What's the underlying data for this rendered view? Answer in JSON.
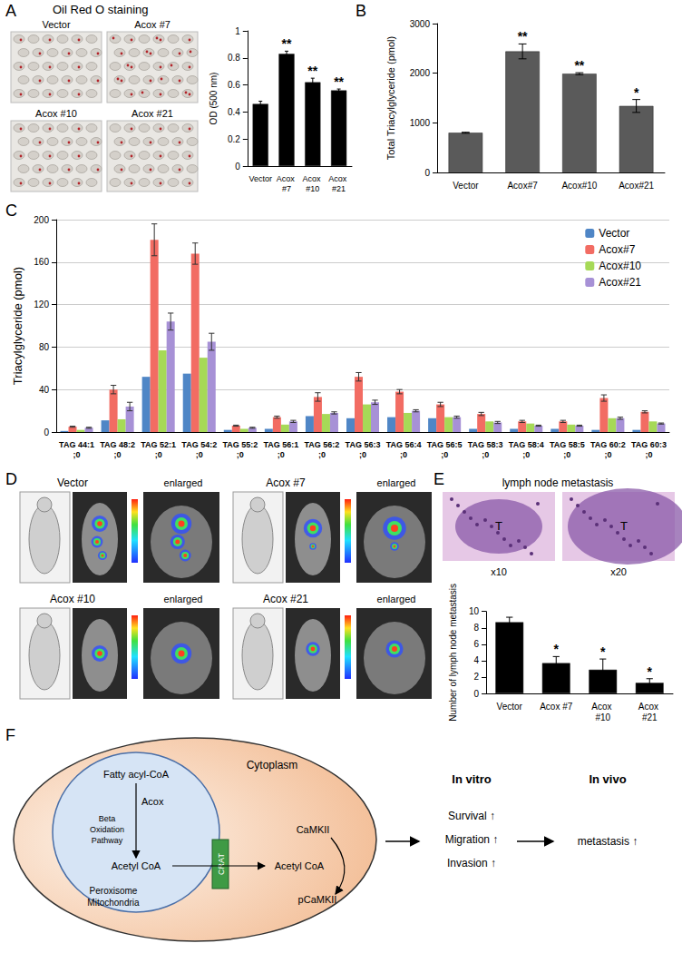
{
  "panel_labels": [
    "A",
    "B",
    "C",
    "D",
    "E",
    "F"
  ],
  "images": {
    "A": {
      "title": "Oil Red O staining",
      "labels": [
        "Vector",
        "Acox #7",
        "Acox #10",
        "Acox #21"
      ]
    },
    "D": {
      "labels": [
        "Vector",
        "Acox #7",
        "Acox #10",
        "Acox #21"
      ],
      "enlarged": "enlarged"
    },
    "E": {
      "title": "lymph node metastasis",
      "tumor_label": "T",
      "captions": [
        "x10",
        "x20"
      ]
    }
  },
  "chart_data": [
    {
      "type": "bar",
      "categories": [
        "Vector",
        "Acox #7",
        "Acox #10",
        "Acox #21"
      ],
      "values": [
        0.46,
        0.83,
        0.62,
        0.56
      ],
      "errors": [
        0.02,
        0.02,
        0.03,
        0.01
      ],
      "color": "#000000",
      "ylabel": "OD (500 nm)",
      "ylim": [
        0,
        1
      ],
      "yticks": [
        0,
        0.2,
        0.4,
        0.6,
        0.8,
        1
      ],
      "grid": false,
      "annotations": [
        {
          "category": "Acox #7",
          "text": "**"
        },
        {
          "category": "Acox #10",
          "text": "**"
        },
        {
          "category": "Acox #21",
          "text": "**"
        }
      ]
    },
    {
      "type": "bar",
      "categories": [
        "Vector",
        "Acox#7",
        "Acox#10",
        "Acox#21"
      ],
      "values": [
        800,
        2440,
        1990,
        1340
      ],
      "errors": [
        10,
        150,
        20,
        130
      ],
      "color": "#5a5a5a",
      "ylabel": "Total Triacylglyceride (pmol)",
      "ylim": [
        0,
        3000
      ],
      "yticks": [
        0,
        1000,
        2000,
        3000
      ],
      "grid": false,
      "annotations": [
        {
          "category": "Acox#7",
          "text": "**"
        },
        {
          "category": "Acox#10",
          "text": "**"
        },
        {
          "category": "Acox#21",
          "text": "*"
        }
      ]
    },
    {
      "type": "bar",
      "categories": [
        "TAG 44:1;0",
        "TAG 48:2;0",
        "TAG 52:1;0",
        "TAG 54:2;0",
        "TAG 55:2;0",
        "TAG 56:1;0",
        "TAG 56:2;0",
        "TAG 56:3;0",
        "TAG 56:4;0",
        "TAG 56:5;0",
        "TAG 58:3;0",
        "TAG 58:4;0",
        "TAG 58:5;0",
        "TAG 60:2;0",
        "TAG 60:3;0"
      ],
      "ylabel": "Triacylglyceride (pmol)",
      "ylim": [
        0,
        200
      ],
      "yticks": [
        0,
        40,
        80,
        120,
        160,
        200
      ],
      "grid": true,
      "legend": "upper right",
      "series": [
        {
          "name": "Vector",
          "color": "#4f86c6",
          "values": [
            1,
            11,
            52,
            55,
            2,
            3,
            15,
            13,
            14,
            13,
            3,
            3,
            3,
            2,
            2
          ]
        },
        {
          "name": "Acox#7",
          "color": "#f26c63",
          "values": [
            5,
            40,
            181,
            168,
            6,
            14,
            33,
            52,
            38,
            26,
            17,
            10,
            10,
            32,
            19
          ],
          "errors": [
            0.5,
            4,
            15,
            10,
            0.5,
            1,
            4,
            4,
            2,
            2,
            1.5,
            1,
            1,
            3,
            1
          ]
        },
        {
          "name": "Acox#10",
          "color": "#a6d957",
          "values": [
            2,
            12,
            77,
            70,
            3,
            7,
            17,
            26,
            18,
            14,
            10,
            8,
            7,
            13,
            10
          ]
        },
        {
          "name": "Acox#21",
          "color": "#a791d6",
          "values": [
            4,
            24,
            104,
            85,
            4,
            10,
            18,
            28,
            20,
            14,
            9,
            6,
            6,
            13,
            8
          ],
          "errors": [
            0.5,
            4,
            8,
            8,
            0.5,
            1,
            1,
            2,
            1,
            1,
            1,
            0.5,
            0.5,
            1,
            0.5
          ]
        }
      ]
    },
    {
      "type": "bar",
      "categories": [
        "Vector",
        "Acox #7",
        "Acox #10",
        "Acox #21"
      ],
      "values": [
        8.7,
        3.7,
        2.9,
        1.3
      ],
      "errors": [
        0.6,
        0.8,
        1.3,
        0.5
      ],
      "color": "#000000",
      "ylabel": "Number of lymph node metastasis",
      "ylim": [
        0,
        10
      ],
      "yticks": [
        0,
        2,
        4,
        6,
        8,
        10
      ],
      "grid": false,
      "annotations": [
        {
          "category": "Acox #7",
          "text": "*"
        },
        {
          "category": "Acox #10",
          "text": "*"
        },
        {
          "category": "Acox #21",
          "text": "*"
        }
      ]
    }
  ],
  "diagram": {
    "cytoplasm": "Cytoplasm",
    "organelle": [
      "Peroxisome",
      "Mitochondria"
    ],
    "substrate": "Fatty acyl-CoA",
    "enzyme": "Acox",
    "pathway": [
      "Beta",
      "Oxidation",
      "Pathway"
    ],
    "product": "Acetyl CoA",
    "transporter": "CRAT",
    "exported": "Acetyl CoA",
    "kinase": "CaMKII",
    "phospho": "pCaMKII",
    "in_vitro": {
      "title": "In vitro",
      "effects": [
        "Survival",
        "Migration",
        "Invasion"
      ]
    },
    "in_vivo": {
      "title": "In vivo",
      "effects": [
        "metastasis"
      ]
    },
    "arrow_up": "↑"
  }
}
